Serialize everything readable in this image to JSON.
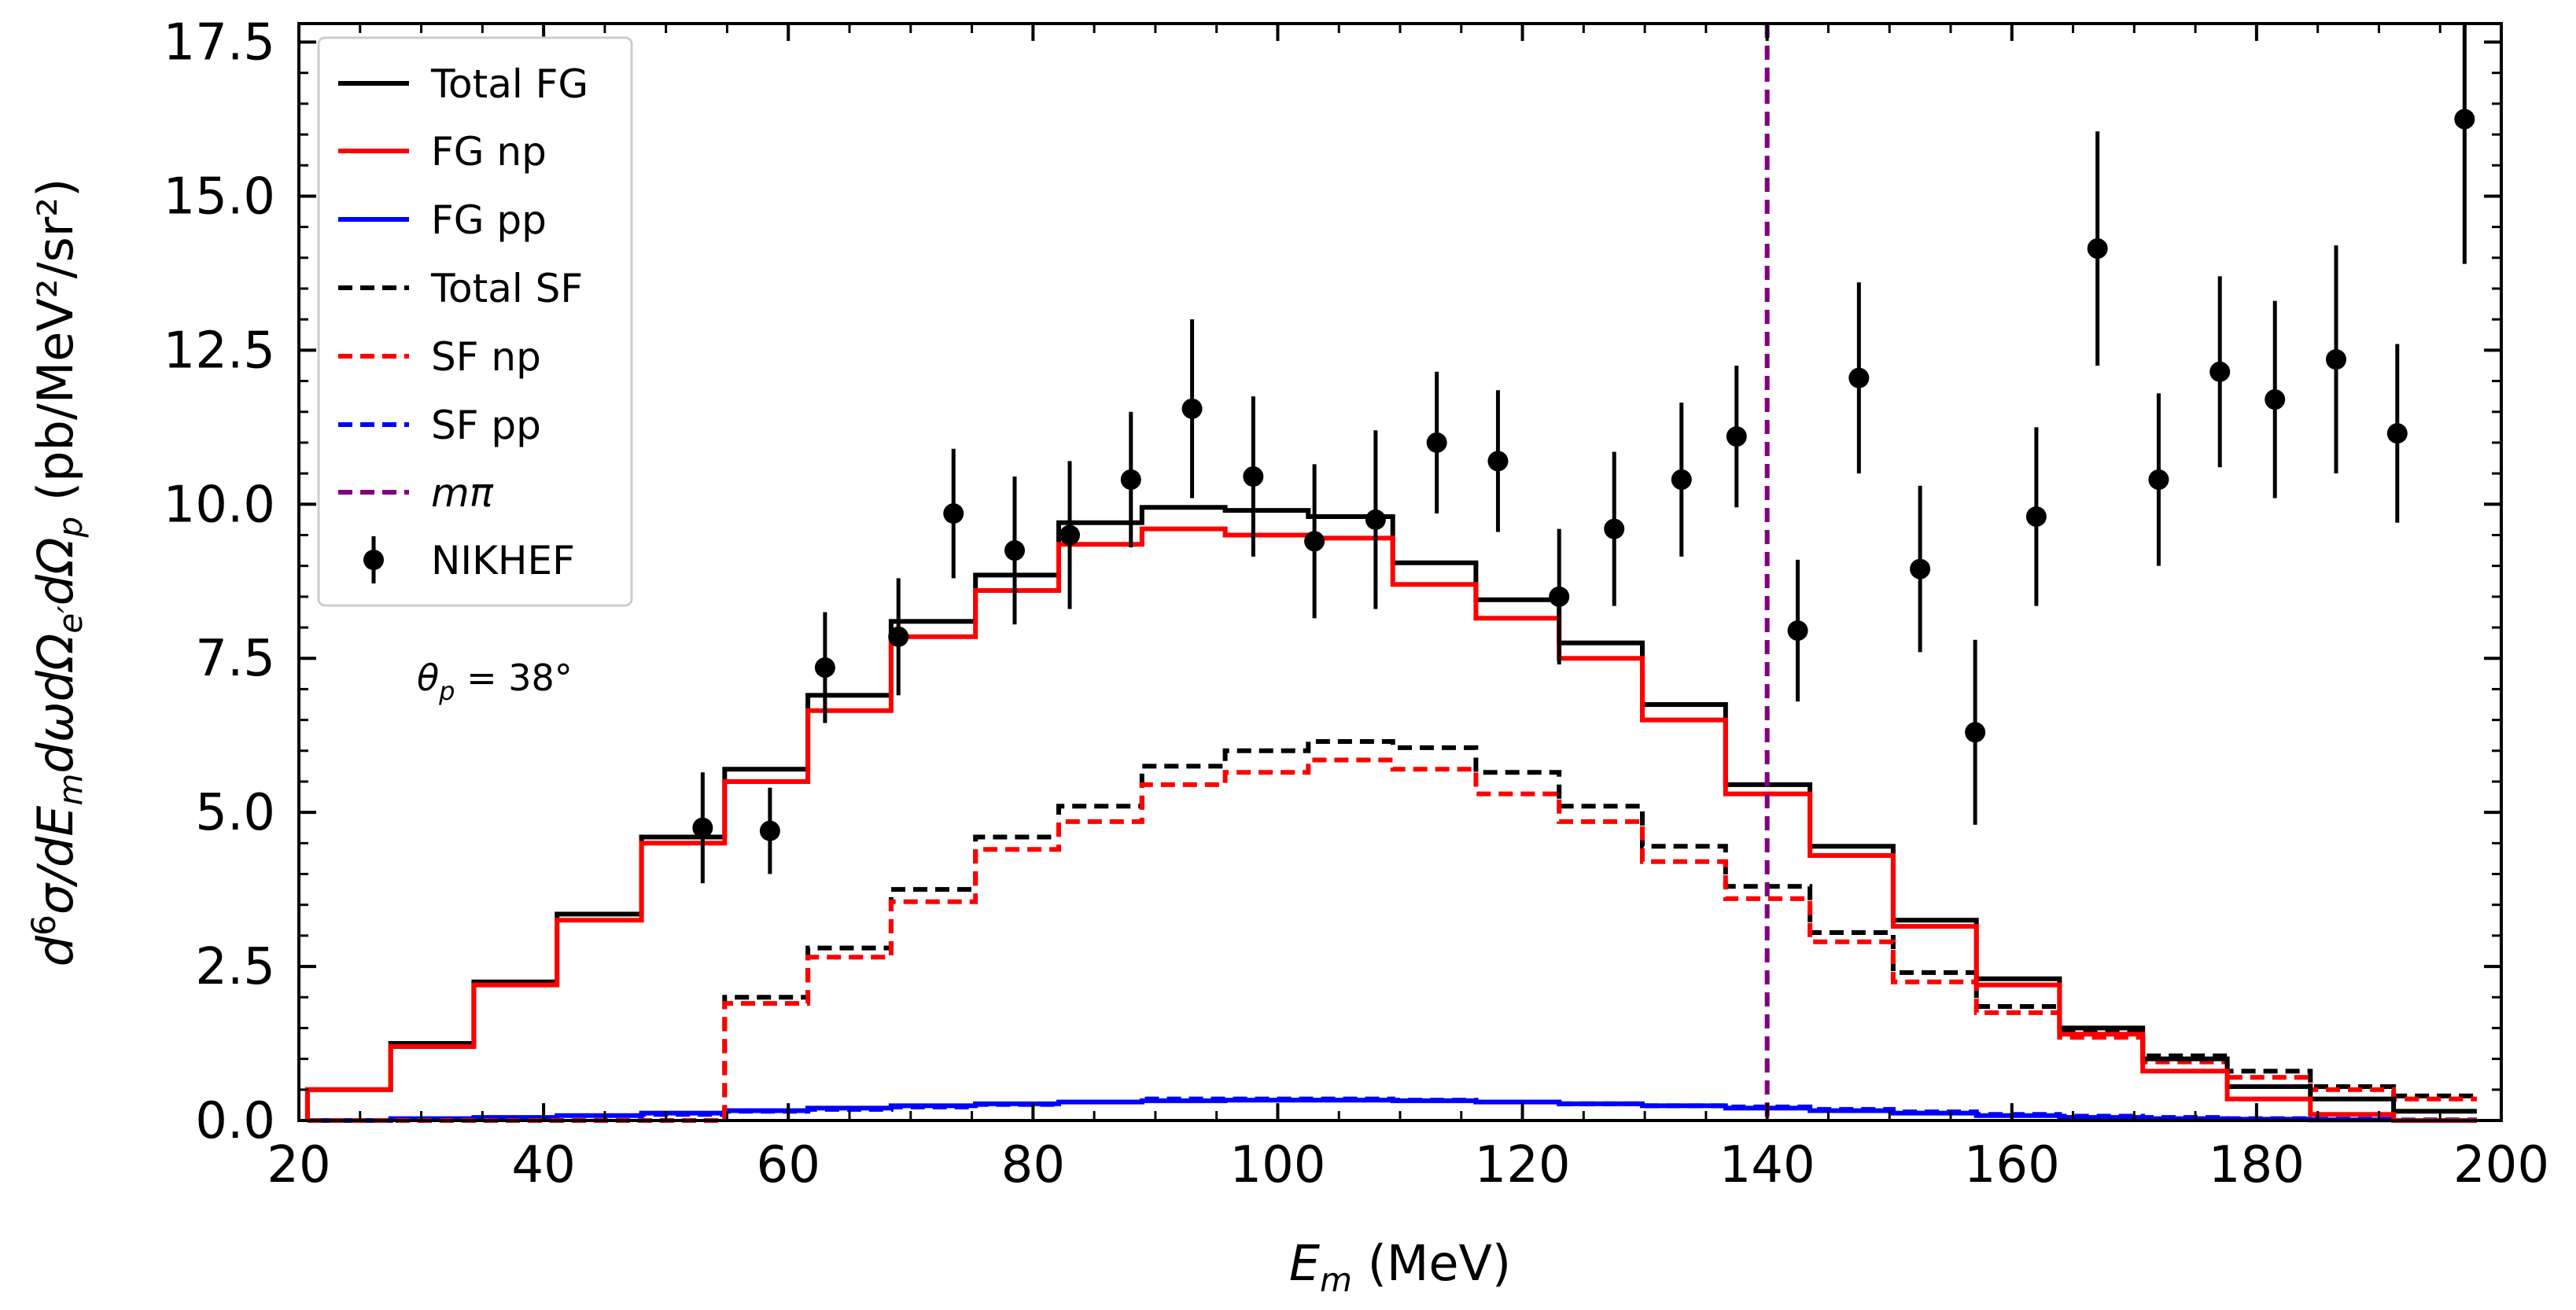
{
  "chart_data": {
    "type": "line",
    "title": "",
    "xlabel": "(MeV)",
    "xlabel_symbol": "E",
    "xlabel_sub": "m",
    "ylabel": "(pb/MeV²/sr²)",
    "ylabel_expr_parts": [
      "d",
      "6",
      "σ/dE",
      "m",
      "dωdΩ",
      "e′",
      "dΩ",
      "p"
    ],
    "xlim": [
      20,
      200
    ],
    "ylim": [
      0,
      17.8
    ],
    "xticks": [
      20,
      40,
      60,
      80,
      100,
      120,
      140,
      160,
      180,
      200
    ],
    "xtick_labels": [
      "20",
      "40",
      "60",
      "80",
      "100",
      "120",
      "140",
      "160",
      "180",
      "200"
    ],
    "yticks": [
      0,
      2.5,
      5,
      7.5,
      10,
      12.5,
      15,
      17.5
    ],
    "ytick_labels": [
      "0.0",
      "2.5",
      "5.0",
      "7.5",
      "10.0",
      "12.5",
      "15.0",
      "17.5"
    ],
    "annotation": "θp = 38°",
    "annotation_parts": [
      "θ",
      "p",
      " = 38°"
    ],
    "bin_edges": [
      20.7,
      27.5,
      34.3,
      41.1,
      48.0,
      54.8,
      61.6,
      68.4,
      75.3,
      82.1,
      88.9,
      95.7,
      102.5,
      109.4,
      116.2,
      123.0,
      129.8,
      136.6,
      143.5,
      150.3,
      157.1,
      163.9,
      170.7,
      177.6,
      184.4,
      191.2,
      198.0
    ],
    "series": [
      {
        "name": "Total FG",
        "label": "Total FG",
        "color": "#000000",
        "style": "solid",
        "values": [
          0.5,
          1.25,
          2.25,
          3.35,
          4.6,
          5.7,
          6.9,
          8.1,
          8.85,
          9.7,
          9.95,
          9.9,
          9.8,
          9.05,
          8.45,
          7.75,
          6.75,
          5.45,
          4.45,
          3.25,
          2.3,
          1.5,
          1.0,
          0.55,
          0.35,
          0.15
        ]
      },
      {
        "name": "FG np",
        "label": "FG np",
        "color": "#ff0000",
        "style": "solid",
        "values": [
          0.5,
          1.2,
          2.2,
          3.25,
          4.5,
          5.5,
          6.65,
          7.85,
          8.6,
          9.35,
          9.6,
          9.5,
          9.45,
          8.7,
          8.15,
          7.5,
          6.5,
          5.3,
          4.3,
          3.15,
          2.2,
          1.4,
          0.8,
          0.35,
          0.1,
          0.0
        ]
      },
      {
        "name": "FG pp",
        "label": "FG pp",
        "color": "#0000ff",
        "style": "solid",
        "values": [
          0.0,
          0.03,
          0.05,
          0.08,
          0.12,
          0.16,
          0.2,
          0.24,
          0.27,
          0.3,
          0.32,
          0.33,
          0.33,
          0.32,
          0.3,
          0.27,
          0.24,
          0.2,
          0.16,
          0.12,
          0.08,
          0.05,
          0.03,
          0.02,
          0.01,
          0.0
        ]
      },
      {
        "name": "Total SF",
        "label": "Total SF",
        "color": "#000000",
        "style": "dashed",
        "values": [
          0.0,
          0.0,
          0.0,
          0.0,
          0.0,
          2.0,
          2.8,
          3.75,
          4.6,
          5.1,
          5.75,
          6.0,
          6.15,
          6.05,
          5.65,
          5.1,
          4.45,
          3.8,
          3.05,
          2.4,
          1.85,
          1.45,
          1.05,
          0.8,
          0.55,
          0.4
        ]
      },
      {
        "name": "SF np",
        "label": "SF np",
        "color": "#ff0000",
        "style": "dashed",
        "values": [
          0.0,
          0.0,
          0.0,
          0.0,
          0.0,
          1.9,
          2.65,
          3.55,
          4.4,
          4.85,
          5.45,
          5.65,
          5.85,
          5.7,
          5.3,
          4.85,
          4.2,
          3.6,
          2.9,
          2.25,
          1.75,
          1.35,
          0.95,
          0.7,
          0.5,
          0.35
        ]
      },
      {
        "name": "SF pp",
        "label": "SF pp",
        "color": "#0000ff",
        "style": "dashed",
        "values": [
          0.0,
          0.0,
          0.0,
          0.0,
          0.1,
          0.15,
          0.18,
          0.22,
          0.26,
          0.3,
          0.35,
          0.35,
          0.35,
          0.33,
          0.3,
          0.27,
          0.24,
          0.22,
          0.18,
          0.14,
          0.1,
          0.07,
          0.05,
          0.03,
          0.02,
          0.01
        ]
      }
    ],
    "vline": {
      "name": "m_pi",
      "label": "mπ",
      "x": 140,
      "color": "#800080",
      "style": "dashed"
    },
    "data_points": {
      "name": "NIKHEF",
      "label": "NIKHEF",
      "color": "#000000",
      "x": [
        53.0,
        58.5,
        63.0,
        69.0,
        73.5,
        78.5,
        83.0,
        88.0,
        93.0,
        98.0,
        103.0,
        108.0,
        113.0,
        118.0,
        123.0,
        127.5,
        133.0,
        137.5,
        142.5,
        147.5,
        152.5,
        157.0,
        162.0,
        167.0,
        172.0,
        177.0,
        181.5,
        186.5,
        191.5,
        197.0
      ],
      "y": [
        4.75,
        4.7,
        7.35,
        7.85,
        9.85,
        9.25,
        9.5,
        10.4,
        11.55,
        10.45,
        9.4,
        9.75,
        11.0,
        10.7,
        8.5,
        9.6,
        10.4,
        11.1,
        7.95,
        12.05,
        8.95,
        6.3,
        9.8,
        14.15,
        10.4,
        12.15,
        11.7,
        12.35,
        11.15,
        16.25
      ],
      "err": [
        0.9,
        0.7,
        0.9,
        0.95,
        1.05,
        1.2,
        1.2,
        1.1,
        1.45,
        1.3,
        1.25,
        1.45,
        1.15,
        1.15,
        1.1,
        1.25,
        1.25,
        1.15,
        1.15,
        1.55,
        1.35,
        1.5,
        1.45,
        1.9,
        1.4,
        1.55,
        1.6,
        1.85,
        1.45,
        2.35
      ]
    },
    "legend_position": "top-left"
  }
}
